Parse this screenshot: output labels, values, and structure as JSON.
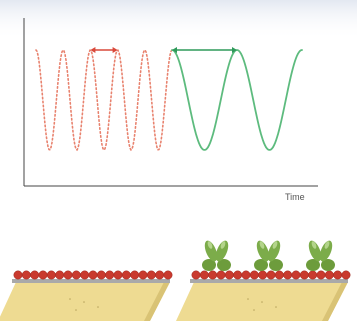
{
  "axis": {
    "x_label": "Time"
  },
  "traces": {
    "fast": {
      "color": "#e8826e",
      "style": "dotted",
      "cycles": 5
    },
    "slow": {
      "color": "#5dbb7e",
      "style": "solid",
      "cycles": 2
    }
  },
  "period_markers": [
    {
      "trace": "fast",
      "color": "#d9483a"
    },
    {
      "trace": "slow",
      "color": "#2e9a5a"
    }
  ],
  "panels": [
    {
      "name": "bare-surface",
      "bead_color": "#c93a2e",
      "has_molecules": false
    },
    {
      "name": "coated-surface",
      "bead_color": "#c93a2e",
      "has_molecules": true,
      "molecule_count": 3,
      "molecule_color": "#7cac4a"
    }
  ],
  "colors": {
    "background_top": "#e8ecf3",
    "substrate": "#eedb92",
    "substrate_shadow": "#d9c375",
    "base_line": "#a9a9a9"
  }
}
